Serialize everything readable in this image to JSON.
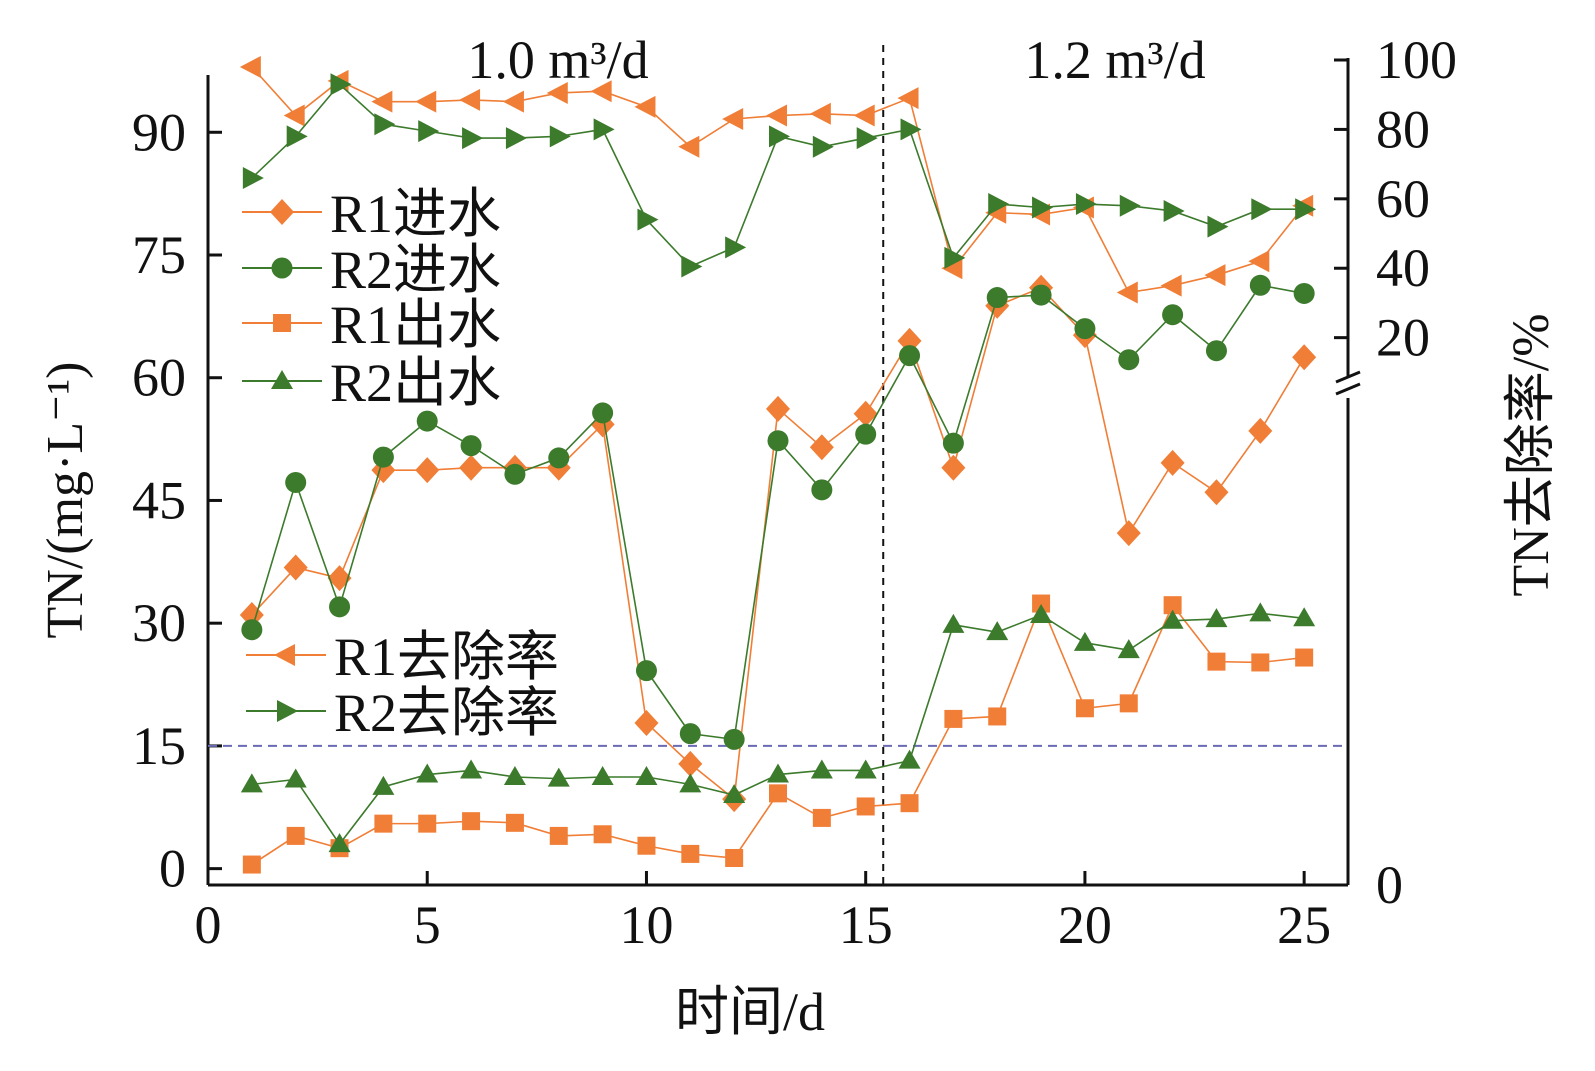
{
  "chart_data": {
    "type": "line",
    "xlabel": "时间/d",
    "ylabel_left": "TN/(mg·L⁻¹)",
    "ylabel_right": "TN去除率/%",
    "phase_labels": [
      "1.0 m³/d",
      "1.2 m³/d"
    ],
    "phase_boundary_x": 15.4,
    "reference_line_y": 15,
    "xlim": [
      0,
      26
    ],
    "ylim_left": [
      -2,
      97
    ],
    "ylim_right_upper": [
      15,
      100
    ],
    "xticks": [
      0,
      5,
      10,
      15,
      20,
      25
    ],
    "yticks_left": [
      0,
      15,
      30,
      45,
      60,
      75,
      90
    ],
    "yticks_right": [
      0,
      20,
      40,
      60,
      80,
      100
    ],
    "grid": false,
    "legend": [
      {
        "name": "R1进水",
        "marker": "diamond",
        "color": "#F07E36"
      },
      {
        "name": "R2进水",
        "marker": "circle",
        "color": "#3C7A2C"
      },
      {
        "name": "R1出水",
        "marker": "square",
        "color": "#F07E36"
      },
      {
        "name": "R2出水",
        "marker": "triangle-up",
        "color": "#3C7A2C"
      },
      {
        "name": "R1去除率",
        "marker": "triangle-left",
        "color": "#F07E36"
      },
      {
        "name": "R2去除率",
        "marker": "triangle-right",
        "color": "#3C7A2C"
      }
    ],
    "x": [
      1,
      2,
      3,
      4,
      5,
      6,
      7,
      8,
      9,
      10,
      11,
      12,
      13,
      14,
      15,
      16,
      17,
      18,
      19,
      20,
      21,
      22,
      23,
      24,
      25
    ],
    "series": [
      {
        "name": "R1进水",
        "axis": "left",
        "marker": "diamond",
        "color": "#F07E36",
        "values": [
          31,
          36.8,
          35.5,
          48.7,
          48.7,
          49.0,
          49.0,
          49.0,
          54.3,
          17.8,
          12.8,
          8.5,
          56.2,
          51.5,
          55.6,
          64.5,
          49.0,
          68.8,
          71,
          65.2,
          41,
          49.6,
          46,
          53.5,
          62.5
        ]
      },
      {
        "name": "R2进水",
        "axis": "left",
        "marker": "circle",
        "color": "#3C7A2C",
        "values": [
          29.2,
          47.2,
          32.0,
          50.3,
          54.7,
          51.7,
          48.2,
          50.2,
          55.7,
          24.2,
          16.5,
          15.8,
          52.3,
          46.3,
          53.1,
          62.7,
          52.0,
          69.8,
          70.1,
          66.0,
          62.2,
          67.7,
          63.3,
          71.3,
          70.3
        ]
      },
      {
        "name": "R1出水",
        "axis": "left",
        "marker": "square",
        "color": "#F07E36",
        "values": [
          0.5,
          4.0,
          2.5,
          5.5,
          5.5,
          5.8,
          5.6,
          4.0,
          4.2,
          2.8,
          1.8,
          1.3,
          9.2,
          6.2,
          7.6,
          8.0,
          18.3,
          18.6,
          32.4,
          19.6,
          20.2,
          32.2,
          25.3,
          25.2,
          25.8
        ]
      },
      {
        "name": "R2出水",
        "axis": "left",
        "marker": "triangle-up",
        "color": "#3C7A2C",
        "values": [
          10.3,
          10.9,
          3.0,
          10.0,
          11.5,
          12.0,
          11.2,
          11.0,
          11.2,
          11.2,
          10.3,
          9.0,
          11.5,
          12.0,
          12.0,
          13.2,
          29.8,
          28.9,
          31.0,
          27.6,
          26.7,
          30.3,
          30.5,
          31.2,
          30.6
        ]
      },
      {
        "name": "R1去除率",
        "axis": "right",
        "marker": "triangle-left",
        "color": "#F07E36",
        "values": [
          98,
          84,
          94,
          88,
          88,
          88.5,
          88,
          90.5,
          91,
          86.5,
          75,
          83,
          84,
          84.5,
          84,
          89,
          40,
          56,
          55.5,
          57.5,
          33,
          35,
          38,
          42,
          58
        ]
      },
      {
        "name": "R2去除率",
        "axis": "right",
        "marker": "triangle-right",
        "color": "#3C7A2C",
        "values": [
          66,
          78,
          93,
          81.5,
          79.5,
          77.5,
          77.5,
          78,
          80,
          54,
          40.5,
          46,
          78,
          75,
          77.5,
          80,
          43,
          58.5,
          57.5,
          58.5,
          58,
          56.5,
          52,
          57,
          57
        ]
      }
    ]
  }
}
